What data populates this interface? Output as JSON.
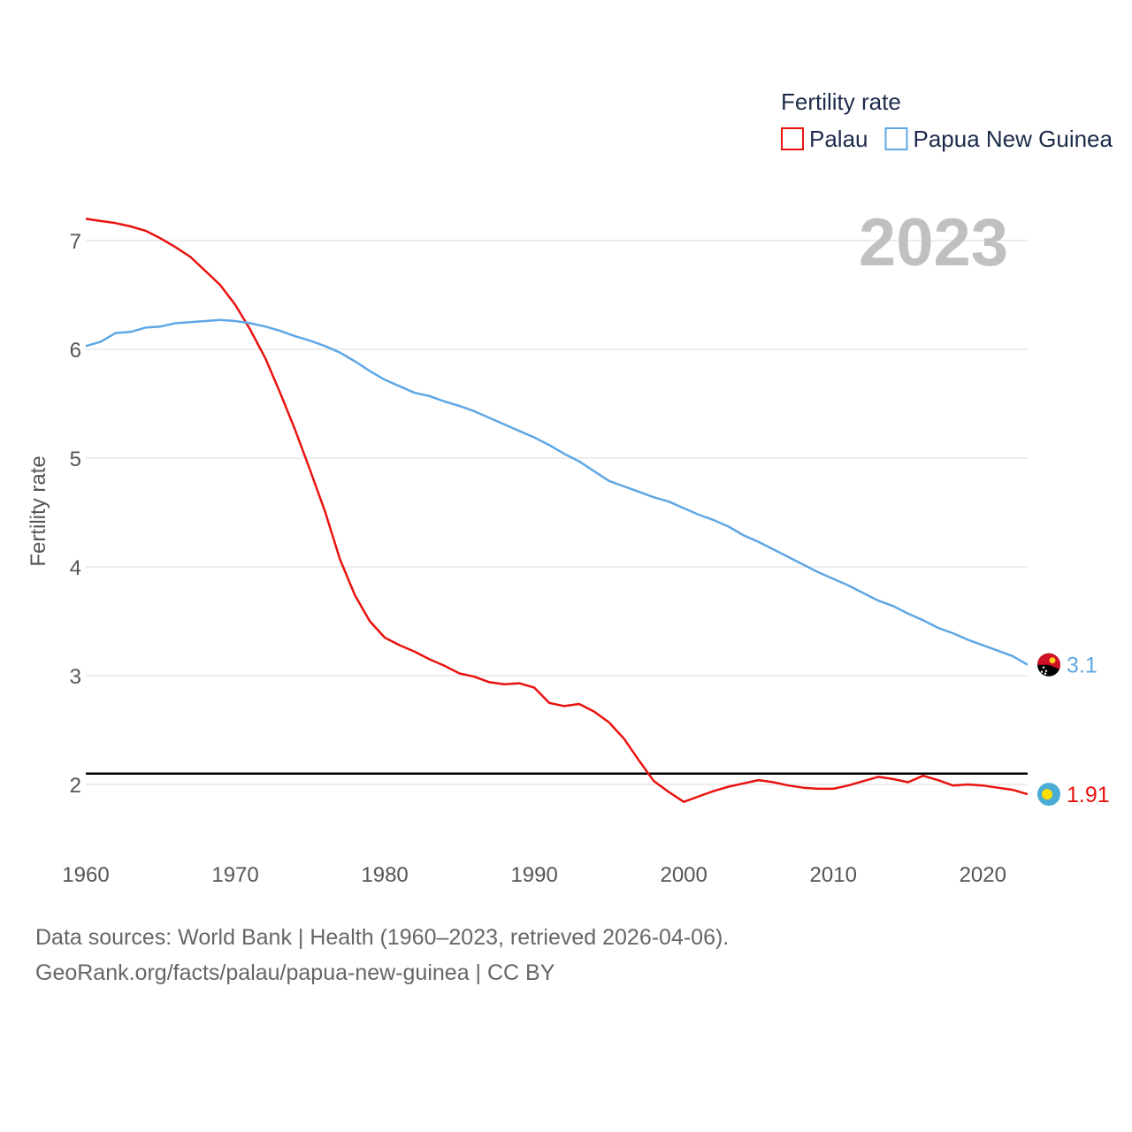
{
  "chart_data": {
    "type": "line",
    "title": "Fertility rate",
    "ylabel": "Fertility rate",
    "xlabel": "",
    "year_label": "2023",
    "xlim": [
      1960,
      2023
    ],
    "ylim": [
      1.45,
      7.4
    ],
    "x_ticks": [
      1960,
      1970,
      1980,
      1990,
      2000,
      2010,
      2020
    ],
    "y_ticks": [
      2,
      3,
      4,
      5,
      6,
      7
    ],
    "grid": true,
    "reference_line": 2.1,
    "legend_position": "top-right",
    "series": [
      {
        "name": "Palau",
        "color": "#e8130f",
        "end_label": "1.91",
        "flag_icon": "palau-flag-icon",
        "x": [
          1960,
          1961,
          1962,
          1963,
          1964,
          1965,
          1966,
          1967,
          1968,
          1969,
          1970,
          1971,
          1972,
          1973,
          1974,
          1975,
          1976,
          1977,
          1978,
          1979,
          1980,
          1981,
          1982,
          1983,
          1984,
          1985,
          1986,
          1987,
          1988,
          1989,
          1990,
          1991,
          1992,
          1993,
          1994,
          1995,
          1996,
          1997,
          1998,
          1999,
          2000,
          2001,
          2002,
          2003,
          2004,
          2005,
          2006,
          2007,
          2008,
          2009,
          2010,
          2011,
          2012,
          2013,
          2014,
          2015,
          2016,
          2017,
          2018,
          2019,
          2020,
          2021,
          2022,
          2023
        ],
        "values": [
          7.2,
          7.18,
          7.16,
          7.13,
          7.09,
          7.02,
          6.94,
          6.85,
          6.72,
          6.59,
          6.41,
          6.18,
          5.92,
          5.6,
          5.26,
          4.89,
          4.51,
          4.07,
          3.74,
          3.5,
          3.35,
          3.28,
          3.22,
          3.15,
          3.09,
          3.02,
          2.99,
          2.94,
          2.92,
          2.93,
          2.89,
          2.75,
          2.72,
          2.74,
          2.67,
          2.57,
          2.42,
          2.22,
          2.03,
          1.93,
          1.84,
          1.89,
          1.94,
          1.98,
          2.01,
          2.04,
          2.02,
          1.99,
          1.97,
          1.96,
          1.96,
          1.99,
          2.03,
          2.07,
          2.05,
          2.02,
          2.08,
          2.04,
          1.99,
          2.0,
          1.99,
          1.97,
          1.95,
          1.91
        ]
      },
      {
        "name": "Papua New Guinea",
        "color": "#5ea7e4",
        "end_label": "3.1",
        "flag_icon": "papua-new-guinea-flag-icon",
        "x": [
          1960,
          1961,
          1962,
          1963,
          1964,
          1965,
          1966,
          1967,
          1968,
          1969,
          1970,
          1971,
          1972,
          1973,
          1974,
          1975,
          1976,
          1977,
          1978,
          1979,
          1980,
          1981,
          1982,
          1983,
          1984,
          1985,
          1986,
          1987,
          1988,
          1989,
          1990,
          1991,
          1992,
          1993,
          1994,
          1995,
          1996,
          1997,
          1998,
          1999,
          2000,
          2001,
          2002,
          2003,
          2004,
          2005,
          2006,
          2007,
          2008,
          2009,
          2010,
          2011,
          2012,
          2013,
          2014,
          2015,
          2016,
          2017,
          2018,
          2019,
          2020,
          2021,
          2022,
          2023
        ],
        "values": [
          6.03,
          6.07,
          6.15,
          6.16,
          6.2,
          6.21,
          6.24,
          6.25,
          6.26,
          6.27,
          6.26,
          6.24,
          6.21,
          6.17,
          6.12,
          6.08,
          6.03,
          5.97,
          5.89,
          5.8,
          5.72,
          5.66,
          5.6,
          5.57,
          5.52,
          5.48,
          5.43,
          5.37,
          5.31,
          5.25,
          5.19,
          5.12,
          5.04,
          4.97,
          4.88,
          4.79,
          4.74,
          4.69,
          4.64,
          4.6,
          4.54,
          4.48,
          4.43,
          4.37,
          4.29,
          4.23,
          4.16,
          4.09,
          4.02,
          3.95,
          3.89,
          3.83,
          3.76,
          3.69,
          3.64,
          3.57,
          3.51,
          3.44,
          3.39,
          3.33,
          3.28,
          3.23,
          3.18,
          3.1
        ]
      }
    ]
  },
  "footer": {
    "line1": "Data sources: World Bank | Health (1960–2023, retrieved 2026-04-06).",
    "line2": "GeoRank.org/facts/palau/papua-new-guinea | CC BY"
  }
}
